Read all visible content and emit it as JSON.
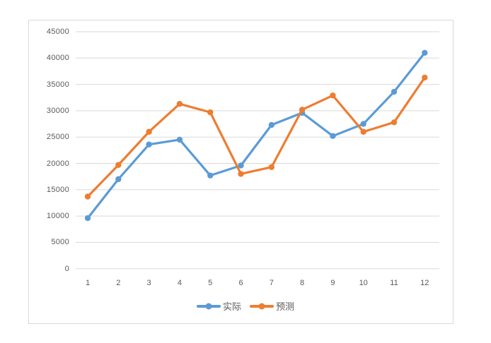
{
  "chart_data": {
    "type": "line",
    "title": "",
    "xlabel": "",
    "ylabel": "",
    "categories": [
      "1",
      "2",
      "3",
      "4",
      "5",
      "6",
      "7",
      "8",
      "9",
      "10",
      "11",
      "12"
    ],
    "series": [
      {
        "name": "实际",
        "color": "#5B9BD5",
        "values": [
          9600,
          17000,
          23600,
          24500,
          17700,
          19600,
          27300,
          29600,
          25200,
          27500,
          33600,
          41000
        ]
      },
      {
        "name": "预测",
        "color": "#ED7D31",
        "values": [
          13700,
          19700,
          26000,
          31300,
          29700,
          18000,
          19300,
          30200,
          32900,
          26000,
          27800,
          36300
        ]
      }
    ],
    "yticks": [
      0,
      5000,
      10000,
      15000,
      20000,
      25000,
      30000,
      35000,
      40000,
      45000
    ],
    "ylim": [
      0,
      45000
    ],
    "grid": "horizontal",
    "gridline_color": "#D9D9D9",
    "frame_border_color": "#D9D9D9",
    "axis_text_color": "#595959",
    "marker": "circle",
    "legend_position": "bottom-center"
  }
}
